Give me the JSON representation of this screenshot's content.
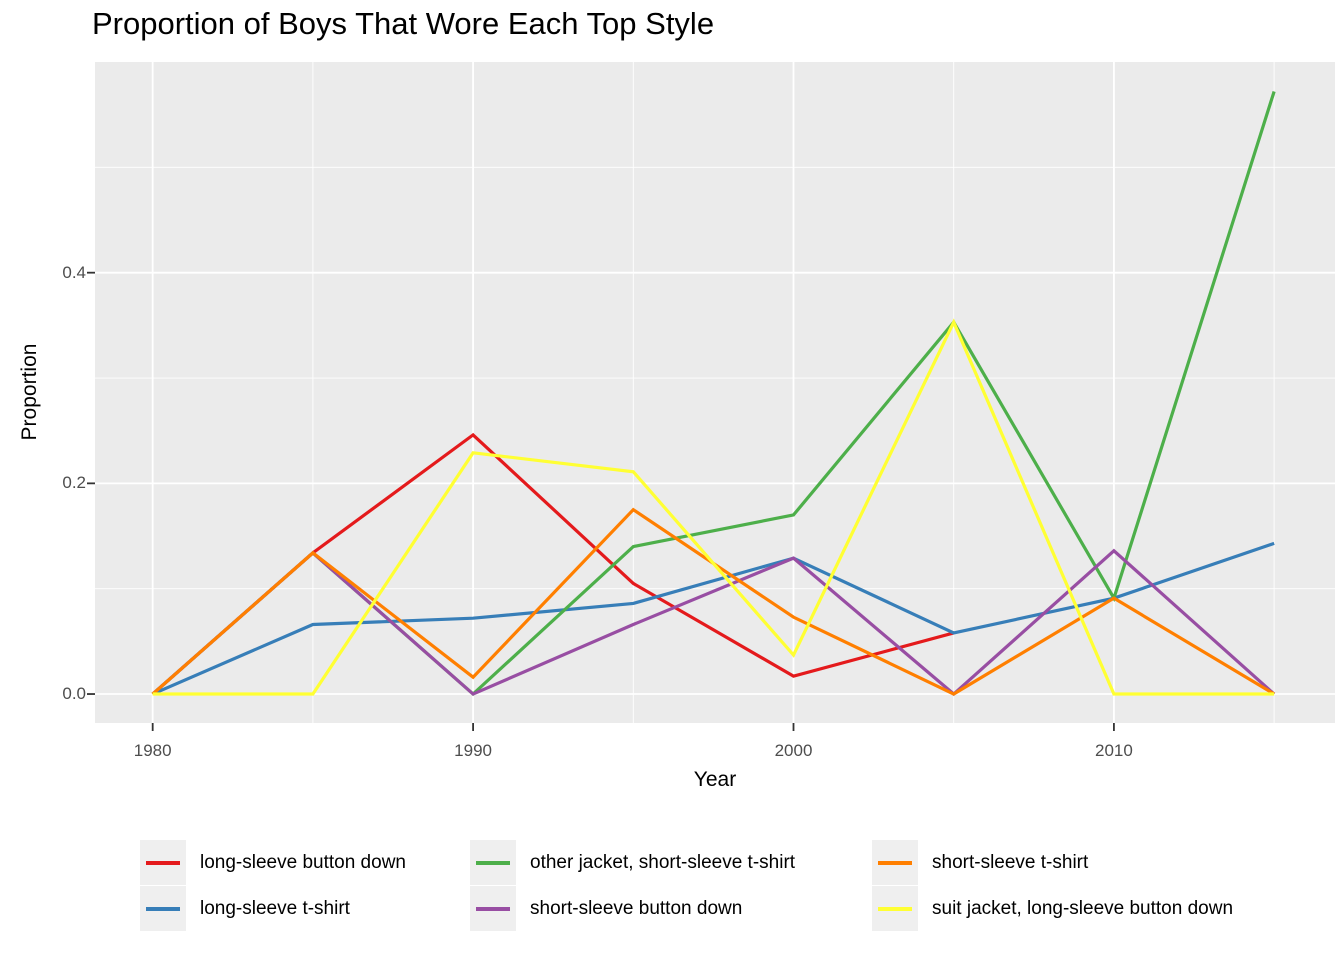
{
  "chart_data": {
    "type": "line",
    "title": "Proportion of Boys That Wore Each Top Style",
    "xlabel": "Year",
    "ylabel": "Proportion",
    "x": [
      1980,
      1985,
      1990,
      1995,
      2000,
      2005,
      2010,
      2015
    ],
    "series": [
      {
        "name": "long-sleeve button down",
        "color": "#E41A1C",
        "values": [
          0,
          0.134,
          0.246,
          0.105,
          0.017,
          0.058,
          null,
          null
        ]
      },
      {
        "name": "long-sleeve t-shirt",
        "color": "#377EB8",
        "values": [
          0,
          0.066,
          0.072,
          0.086,
          0.129,
          0.058,
          0.091,
          0.143
        ]
      },
      {
        "name": "other jacket, short-sleeve t-shirt",
        "color": "#4DAF4A",
        "values": [
          0,
          0.134,
          0,
          0.14,
          0.17,
          0.353,
          0.091,
          0.572
        ]
      },
      {
        "name": "short-sleeve button down",
        "color": "#984EA3",
        "values": [
          0,
          0.134,
          0,
          0.066,
          0.129,
          0,
          0.136,
          0
        ]
      },
      {
        "name": "short-sleeve t-shirt",
        "color": "#FF7F00",
        "values": [
          0,
          0.134,
          0.016,
          0.175,
          0.073,
          0,
          0.091,
          0
        ]
      },
      {
        "name": "suit jacket, long-sleeve button down",
        "color": "#FFFF33",
        "values": [
          0,
          0,
          0.229,
          0.211,
          0.037,
          0.353,
          0,
          0
        ]
      }
    ],
    "x_ticks": [
      1980,
      1990,
      2000,
      2010
    ],
    "x_tick_labels": [
      "1980",
      "1990",
      "2000",
      "2010"
    ],
    "x_minor_gridlines": [
      1985,
      1995,
      2005,
      2015
    ],
    "y_ticks": [
      0.0,
      0.2,
      0.4
    ],
    "y_tick_labels": [
      "0.0",
      "0.2",
      "0.4"
    ],
    "y_minor_gridlines": [
      0.1,
      0.3,
      0.5
    ],
    "xlim": [
      1978.2,
      2016.9
    ],
    "ylim": [
      -0.0275,
      0.6
    ],
    "grid": true,
    "legend_position": "bottom",
    "panel_background": "#EBEBEB",
    "gridline_color": "#FFFFFF",
    "tick_mark_color": "#333333",
    "tick_text_color": "#4D4D4D"
  }
}
